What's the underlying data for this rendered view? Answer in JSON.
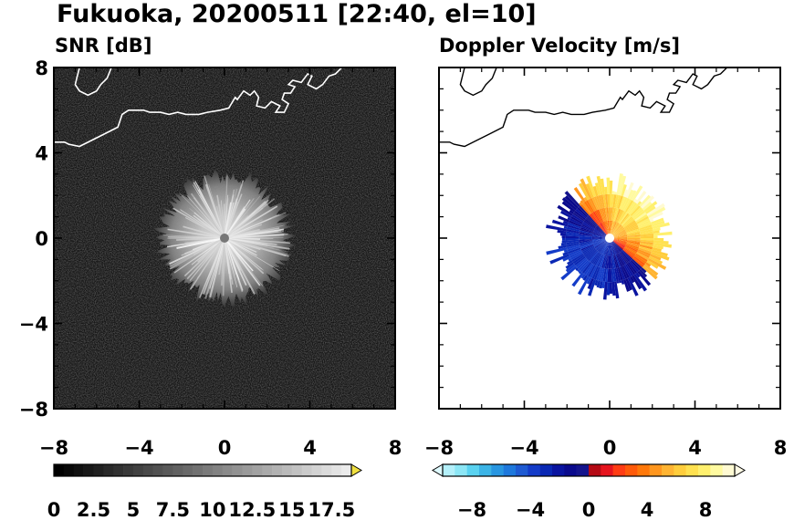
{
  "title": "Fukuoka, 20200511 [22:40, el=10]",
  "chart_data": [
    {
      "type": "heatmap",
      "title": "SNR [dB]",
      "xlim": [
        -8,
        8
      ],
      "ylim": [
        -8,
        8
      ],
      "xticks": [
        "−8",
        "−4",
        "0",
        "4",
        "8"
      ],
      "yticks": [
        "8",
        "4",
        "0",
        "−4",
        "−8"
      ],
      "colorbar": {
        "min": 0,
        "max": 18.75,
        "levels": 30,
        "extend": "max",
        "ticks": [
          "0",
          "2.5",
          "5",
          "7.5",
          "10",
          "12.5",
          "15",
          "17.5"
        ],
        "tick_values": [
          0,
          2.5,
          5,
          7.5,
          10,
          12.5,
          15,
          17.5
        ]
      },
      "echo": {
        "center": [
          0,
          0
        ],
        "radius_km": 3.0,
        "max_db": 17.5
      },
      "colors": {
        "background": "#151515",
        "coastline": "#ffffff",
        "echo": "#e0e0e0"
      }
    },
    {
      "type": "heatmap",
      "title": "Doppler Velocity [m/s]",
      "xlim": [
        -8,
        8
      ],
      "ylim": [
        -8,
        8
      ],
      "xticks": [
        "−8",
        "−4",
        "0",
        "4",
        "8"
      ],
      "yticks": [],
      "colorbar": {
        "min": -10,
        "max": 10,
        "extend": "both",
        "ticks": [
          "−8",
          "−4",
          "0",
          "4",
          "8"
        ],
        "tick_values": [
          -8,
          -4,
          0,
          4,
          8
        ],
        "colors": [
          "#b4f0fa",
          "#8ce6f5",
          "#5ad2f0",
          "#3cb4e6",
          "#2896e1",
          "#1e78dc",
          "#1e5ad2",
          "#143cc8",
          "#0a28b4",
          "#0a14a0",
          "#0a0a8c",
          "#14148c",
          "#b40a14",
          "#e6141e",
          "#ff3c14",
          "#ff5a0a",
          "#ff780a",
          "#ff961e",
          "#ffb432",
          "#ffcd3c",
          "#ffe150",
          "#fff06e",
          "#fffaa0",
          "#fffad2"
        ]
      },
      "echo": {
        "center": [
          0,
          0
        ],
        "radius_km": 2.6,
        "approaching": "blue",
        "receding": "red-orange"
      },
      "colors": {
        "background": "#ffffff",
        "coastline": "#000000"
      }
    }
  ]
}
